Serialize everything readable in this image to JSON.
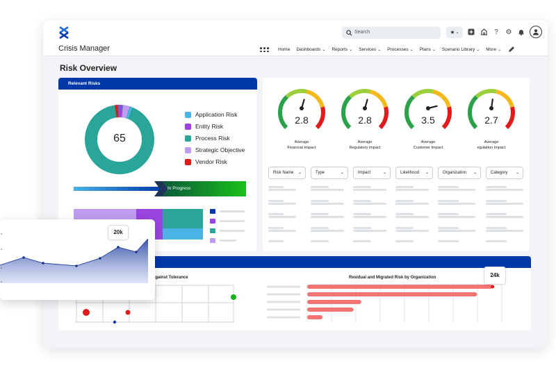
{
  "app": {
    "title": "Crisis Manager"
  },
  "search": {
    "placeholder": "Search"
  },
  "nav": {
    "items": [
      {
        "label": "Home",
        "dropdown": false
      },
      {
        "label": "Dashboards",
        "dropdown": true
      },
      {
        "label": "Reports",
        "dropdown": true
      },
      {
        "label": "Services",
        "dropdown": true
      },
      {
        "label": "Processes",
        "dropdown": true
      },
      {
        "label": "Plans",
        "dropdown": true
      },
      {
        "label": "Scenario Library",
        "dropdown": true
      },
      {
        "label": "More",
        "dropdown": true
      }
    ]
  },
  "page": {
    "title": "Risk Overview"
  },
  "relevant_risks": {
    "title": "Relevant Risks",
    "total": "65",
    "legend": [
      {
        "label": "Application Risk",
        "color": "#4ab3e6"
      },
      {
        "label": "Entity Risk",
        "color": "#9b44e0"
      },
      {
        "label": "Process Risk",
        "color": "#2aa59a"
      },
      {
        "label": "Strategic Objective",
        "color": "#c09cf0"
      },
      {
        "label": "Vendor Risk",
        "color": "#e01b1b"
      }
    ],
    "progress_label": "In Progress"
  },
  "gauges": [
    {
      "value": "2.8",
      "label1": "Average",
      "label2": "Financial Impact",
      "fraction": 0.56
    },
    {
      "value": "2.8",
      "label1": "Average",
      "label2": "Regulatory impact",
      "fraction": 0.56
    },
    {
      "value": "3.5",
      "label1": "Average",
      "label2": "Customer Impact",
      "fraction": 0.78
    },
    {
      "value": "2.7",
      "label1": "Average",
      "label2": "egulation Impact",
      "fraction": 0.53
    }
  ],
  "filters": [
    "Risk Name",
    "Type",
    "Impact",
    "Likelihood",
    "Organization",
    "Category"
  ],
  "bottom": {
    "left_title": "k against Tolerance",
    "right_title": "Residual and Migrated Risk by Organization",
    "right_badge": "24k"
  },
  "floating_chart": {
    "badge": "20k"
  },
  "chart_data": {
    "type": "bar",
    "title": "Residual and Migrated Risk by Organization",
    "categories": [
      "",
      "",
      "",
      "",
      ""
    ],
    "values": [
      24,
      22,
      7,
      6,
      2
    ],
    "xlim": [
      0,
      27
    ]
  }
}
